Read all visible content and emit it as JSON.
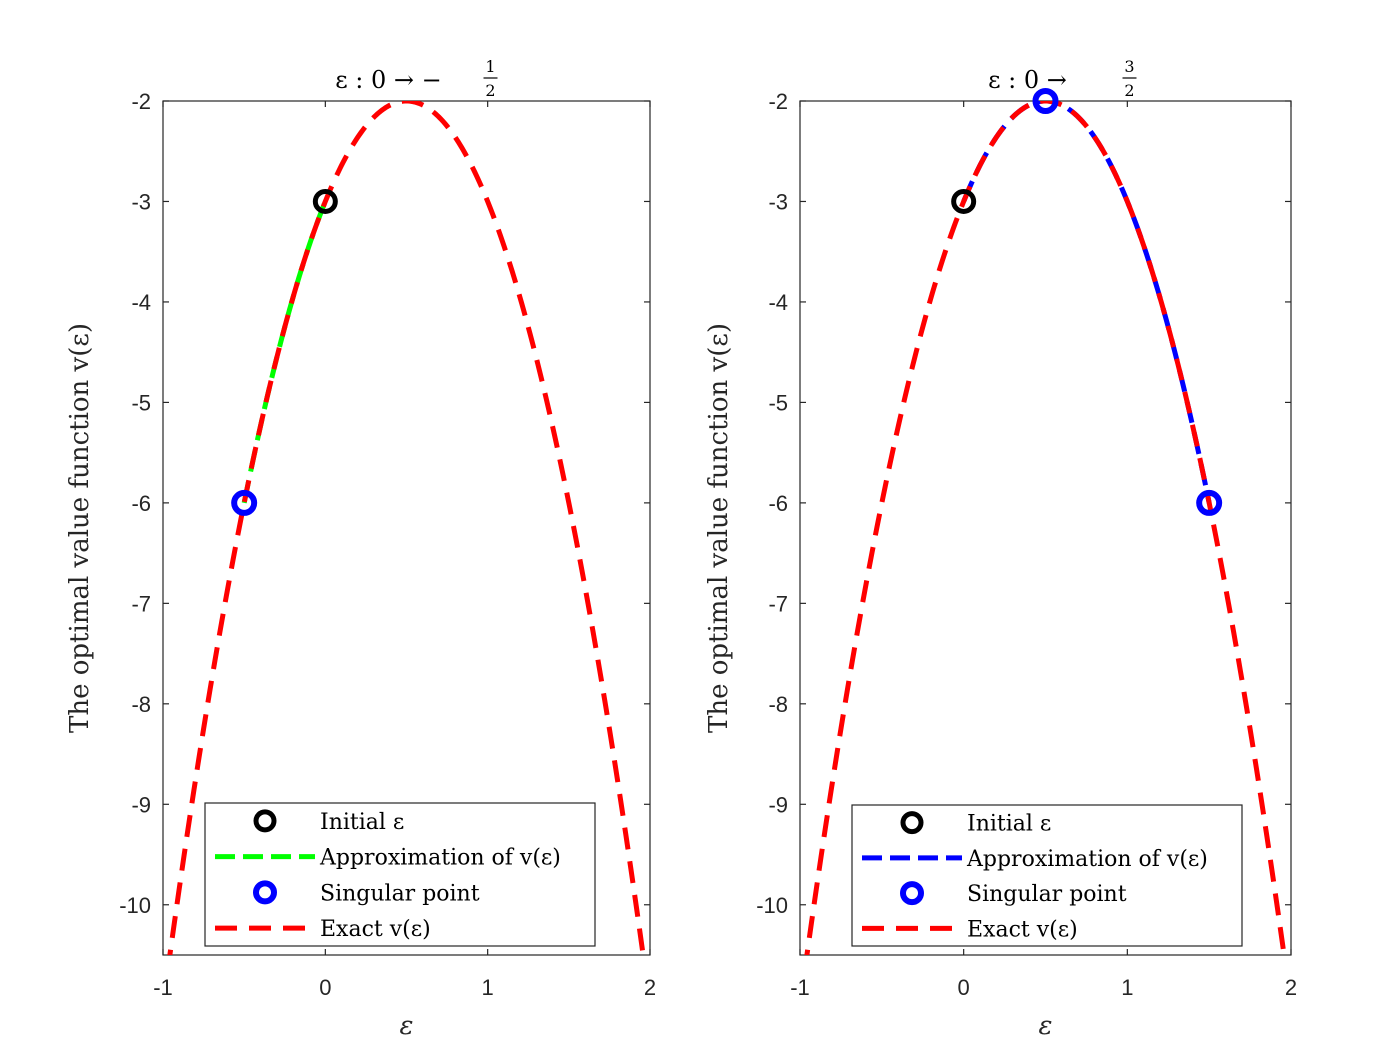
{
  "chart_data": [
    {
      "type": "line",
      "title": "ε : 0 → −½",
      "title_main": "ε : 0 → −",
      "title_frac": {
        "num": "1",
        "den": "2"
      },
      "xlabel": "ε",
      "ylabel": "The optimal value function v(ε)",
      "xlim": [
        -1,
        2
      ],
      "ylim": [
        -10.5,
        -2
      ],
      "xticks": [
        -1,
        0,
        1,
        2
      ],
      "xtick_labels": [
        "-1",
        "0",
        "1",
        "2"
      ],
      "yticks": [
        -2,
        -3,
        -4,
        -5,
        -6,
        -7,
        -8,
        -9,
        -10
      ],
      "ytick_labels": [
        "-2",
        "-3",
        "-4",
        "-5",
        "-6",
        "-7",
        "-8",
        "-9",
        "-10"
      ],
      "exact_curve": {
        "a": -4,
        "b": 4,
        "c": -3,
        "x_from": -1,
        "x_to": 2,
        "color": "#ff0000"
      },
      "approximation": {
        "x_from": 0,
        "x_to": -0.5,
        "color": "#00ff00"
      },
      "initial_point": {
        "x": 0,
        "y": -3,
        "color": "#000000"
      },
      "singular_points": [
        {
          "x": -0.5,
          "y": -6
        }
      ],
      "singular_color": "#0000ff",
      "legend": [
        "Initial ε",
        "Approximation of v(ε)",
        "Singular point",
        "Exact v(ε)"
      ],
      "legend_position": "bottom"
    },
    {
      "type": "line",
      "title": "ε : 0 → 3/2",
      "title_main": "ε : 0 →",
      "title_frac": {
        "num": "3",
        "den": "2"
      },
      "xlabel": "ε",
      "ylabel": "The optimal value function v(ε)",
      "xlim": [
        -1,
        2
      ],
      "ylim": [
        -10.5,
        -2
      ],
      "xticks": [
        -1,
        0,
        1,
        2
      ],
      "xtick_labels": [
        "-1",
        "0",
        "1",
        "2"
      ],
      "yticks": [
        -2,
        -3,
        -4,
        -5,
        -6,
        -7,
        -8,
        -9,
        -10
      ],
      "ytick_labels": [
        "-2",
        "-3",
        "-4",
        "-5",
        "-6",
        "-7",
        "-8",
        "-9",
        "-10"
      ],
      "exact_curve": {
        "a": -4,
        "b": 4,
        "c": -3,
        "x_from": -1,
        "x_to": 2,
        "color": "#ff0000"
      },
      "approximation": {
        "x_from": 0,
        "x_to": 1.5,
        "color": "#0000ff"
      },
      "initial_point": {
        "x": 0,
        "y": -3,
        "color": "#000000"
      },
      "singular_points": [
        {
          "x": 0.5,
          "y": -2
        },
        {
          "x": 1.5,
          "y": -6
        }
      ],
      "singular_color": "#0000ff",
      "legend": [
        "Initial ε",
        "Approximation of v(ε)",
        "Singular point",
        "Exact v(ε)"
      ],
      "legend_position": "bottom"
    }
  ]
}
